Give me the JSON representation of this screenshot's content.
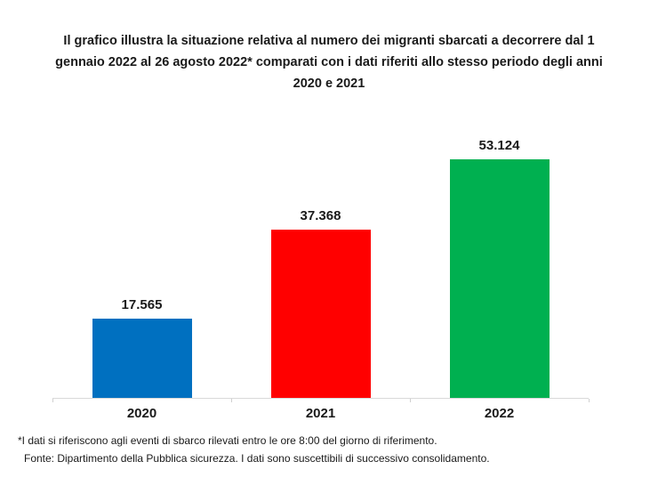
{
  "title": {
    "lines": [
      "Il grafico illustra la situazione relativa al numero dei migranti sbarcati a decorrere dal 1",
      "gennaio 2022 al 26 agosto 2022* comparati con i dati riferiti allo stesso periodo degli anni",
      "2020 e 2021"
    ]
  },
  "chart_data": {
    "type": "bar",
    "title": "Il grafico illustra la situazione relativa al numero dei migranti sbarcati a decorrere dal 1 gennaio 2022 al 26 agosto 2022* comparati con i dati riferiti allo stesso periodo degli anni 2020 e 2021",
    "categories": [
      "2020",
      "2021",
      "2022"
    ],
    "values": [
      17565,
      37368,
      53124
    ],
    "value_labels": [
      "17.565",
      "37.368",
      "53.124"
    ],
    "bar_colors": [
      "#0070C0",
      "#FF0000",
      "#00B050"
    ],
    "xlabel": "",
    "ylabel": "",
    "ylim": [
      0,
      60000
    ],
    "grid": false,
    "legend": false,
    "axis_color": "#D9D9D9"
  },
  "footnotes": [
    "*I dati si riferiscono agli eventi di sbarco rilevati entro le ore 8:00 del giorno di riferimento.",
    "Fonte: Dipartimento della Pubblica sicurezza. I dati sono suscettibili di successivo consolidamento."
  ]
}
